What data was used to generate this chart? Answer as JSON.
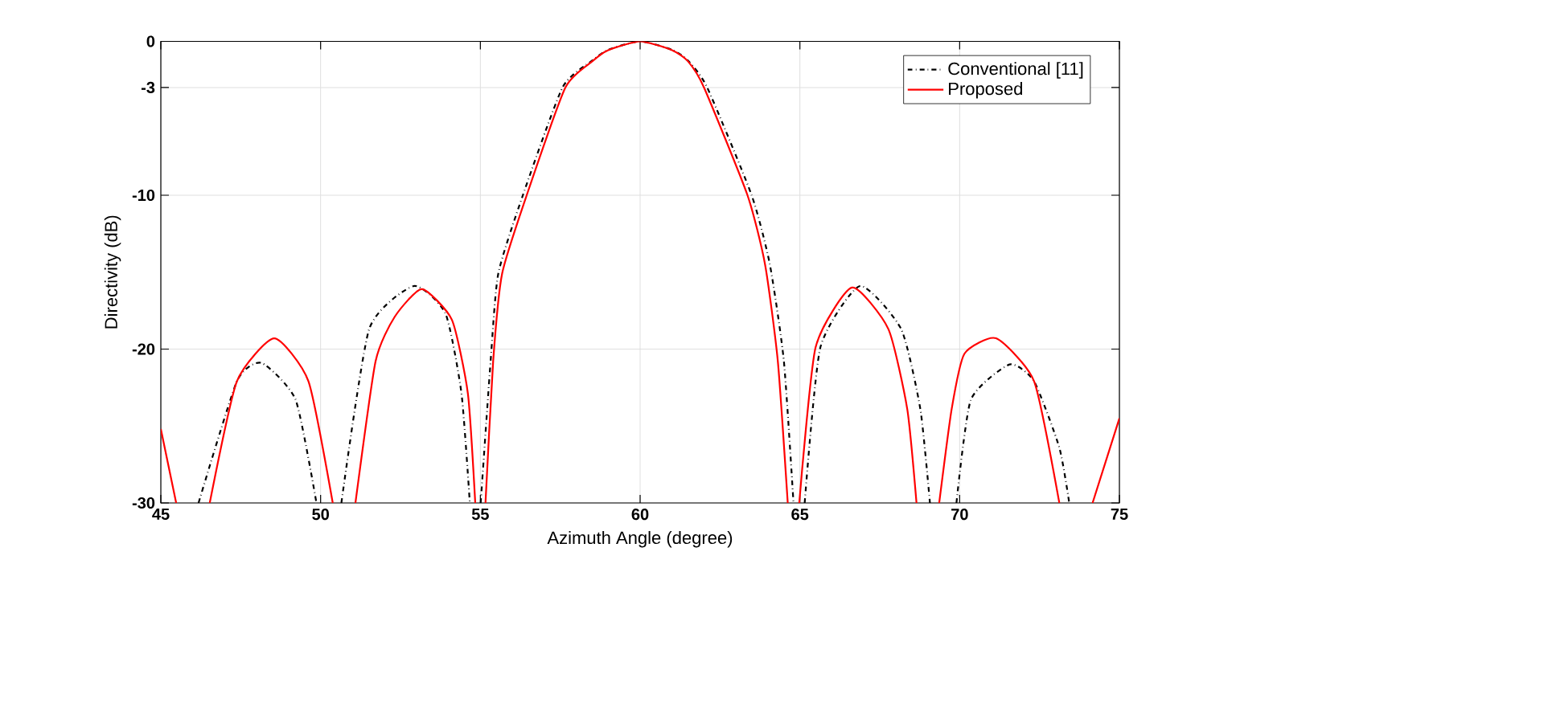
{
  "chart_data": {
    "type": "line",
    "xlabel": "Azimuth Angle (degree)",
    "ylabel": "Directivity (dB)",
    "xlim": [
      45,
      75
    ],
    "ylim": [
      -30,
      0
    ],
    "xticks": [
      45,
      50,
      55,
      60,
      65,
      70,
      75
    ],
    "yticks": [
      -30,
      -20,
      -10,
      -3,
      0
    ],
    "grid": true,
    "legend": "top right",
    "marker": "none",
    "series": [
      {
        "name": "Conventional [11]",
        "color": "#000000",
        "line_style": "dashdot",
        "x": [
          46.18,
          47.38,
          48.15,
          49.22,
          49.87,
          null,
          50.65,
          51.52,
          52.92,
          53.91,
          54.41,
          54.67,
          null,
          55.01,
          55.32,
          55.56,
          56.33,
          57.57,
          58.5,
          59.0,
          60.0,
          61.0,
          61.5,
          62.1,
          63.49,
          64.06,
          64.5,
          64.8,
          null,
          65.15,
          65.64,
          66.88,
          68.17,
          68.77,
          69.07,
          null,
          69.9,
          70.35,
          71.56,
          72.33,
          73.12,
          73.43
        ],
        "values": [
          -30,
          -22.1,
          -20.9,
          -23.3,
          -30,
          null,
          -30,
          -18.7,
          -15.9,
          -17.7,
          -22.9,
          -30,
          null,
          -30,
          -20.8,
          -15.1,
          -10,
          -3,
          -1.25,
          -0.55,
          0,
          -0.55,
          -1.25,
          -3,
          -10,
          -14.5,
          -20.8,
          -30,
          null,
          -30,
          -19.9,
          -15.9,
          -18.7,
          -23.9,
          -30,
          null,
          -30,
          -23.3,
          -21,
          -22.1,
          -26.4,
          -30
        ]
      },
      {
        "name": "Proposed",
        "color": "#ff0000",
        "line_style": "solid",
        "x": [
          45.0,
          45.48,
          null,
          46.53,
          47.38,
          48.55,
          49.62,
          50.38,
          null,
          51.09,
          51.72,
          52.32,
          53.17,
          54.11,
          54.61,
          54.84,
          null,
          55.16,
          55.4,
          55.68,
          56.45,
          57.66,
          58.5,
          59.0,
          60.0,
          61.0,
          61.5,
          62.0,
          63.36,
          63.91,
          64.31,
          64.62,
          null,
          64.98,
          65.49,
          66.63,
          67.77,
          68.36,
          68.65,
          null,
          69.36,
          69.75,
          70.15,
          71.14,
          72.33,
          73.12,
          null,
          74.16,
          75.0
        ],
        "values": [
          -25.2,
          -30,
          null,
          -30,
          -22.1,
          -19.3,
          -22.1,
          -30,
          null,
          -30,
          -20.8,
          -17.9,
          -16.1,
          -18.1,
          -22.9,
          -30,
          null,
          -30,
          -20.8,
          -15.1,
          -10,
          -3,
          -1.3,
          -0.57,
          0,
          -0.57,
          -1.3,
          -3,
          -10,
          -14.5,
          -20.8,
          -30,
          null,
          -30,
          -19.9,
          -16,
          -18.7,
          -23.9,
          -30,
          null,
          -30,
          -23.9,
          -20.3,
          -19.3,
          -22.1,
          -30,
          null,
          -30,
          -24.5
        ]
      }
    ]
  }
}
